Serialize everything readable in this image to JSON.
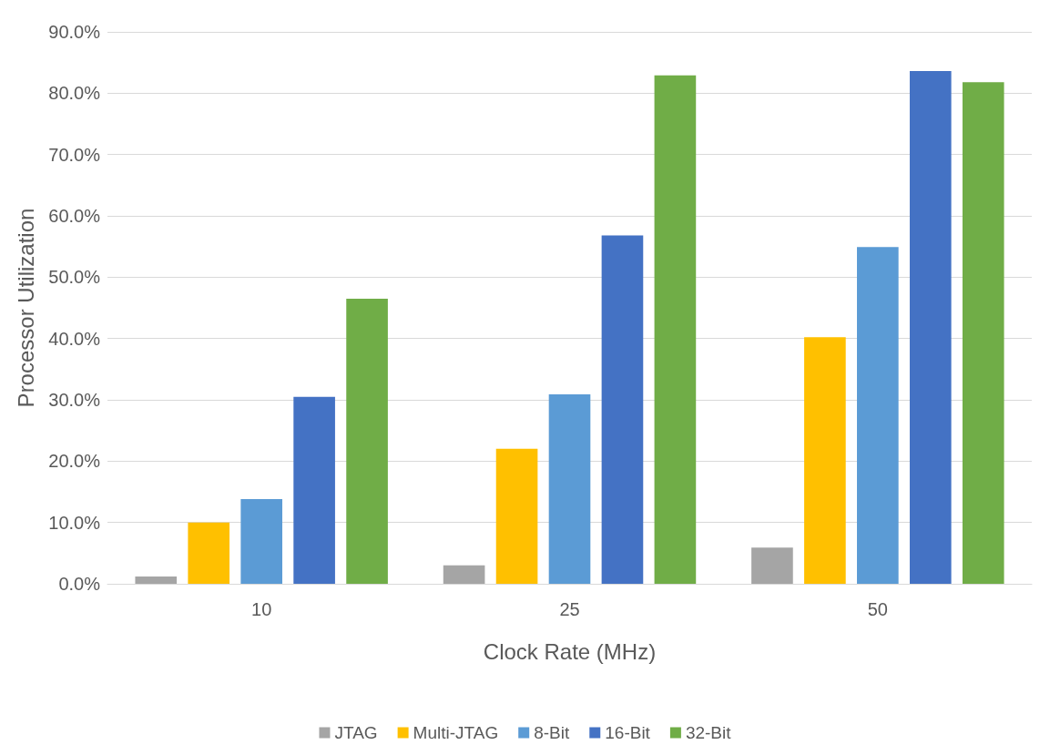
{
  "chart_data": {
    "type": "bar",
    "xlabel": "Clock Rate (MHz)",
    "ylabel": "Processor Utilization",
    "categories": [
      "10",
      "25",
      "50"
    ],
    "series": [
      {
        "name": "JTAG",
        "color": "#a5a5a5",
        "values": [
          1.2,
          3.0,
          5.9
        ]
      },
      {
        "name": "Multi-JTAG",
        "color": "#ffc000",
        "values": [
          10.0,
          22.0,
          40.2
        ]
      },
      {
        "name": "8-Bit",
        "color": "#5b9bd5",
        "values": [
          13.8,
          30.9,
          54.9
        ]
      },
      {
        "name": "16-Bit",
        "color": "#4472c4",
        "values": [
          30.5,
          56.8,
          83.6
        ]
      },
      {
        "name": "32-Bit",
        "color": "#70ad47",
        "values": [
          46.5,
          82.9,
          81.8
        ]
      }
    ],
    "ylim": [
      0,
      90
    ],
    "yticks": [
      {
        "value": 0,
        "label": "0.0%"
      },
      {
        "value": 10,
        "label": "10.0%"
      },
      {
        "value": 20,
        "label": "20.0%"
      },
      {
        "value": 30,
        "label": "30.0%"
      },
      {
        "value": 40,
        "label": "40.0%"
      },
      {
        "value": 50,
        "label": "50.0%"
      },
      {
        "value": 60,
        "label": "60.0%"
      },
      {
        "value": 70,
        "label": "70.0%"
      },
      {
        "value": 80,
        "label": "80.0%"
      },
      {
        "value": 90,
        "label": "90.0%"
      }
    ],
    "grid": "y",
    "legend": "bottom"
  }
}
